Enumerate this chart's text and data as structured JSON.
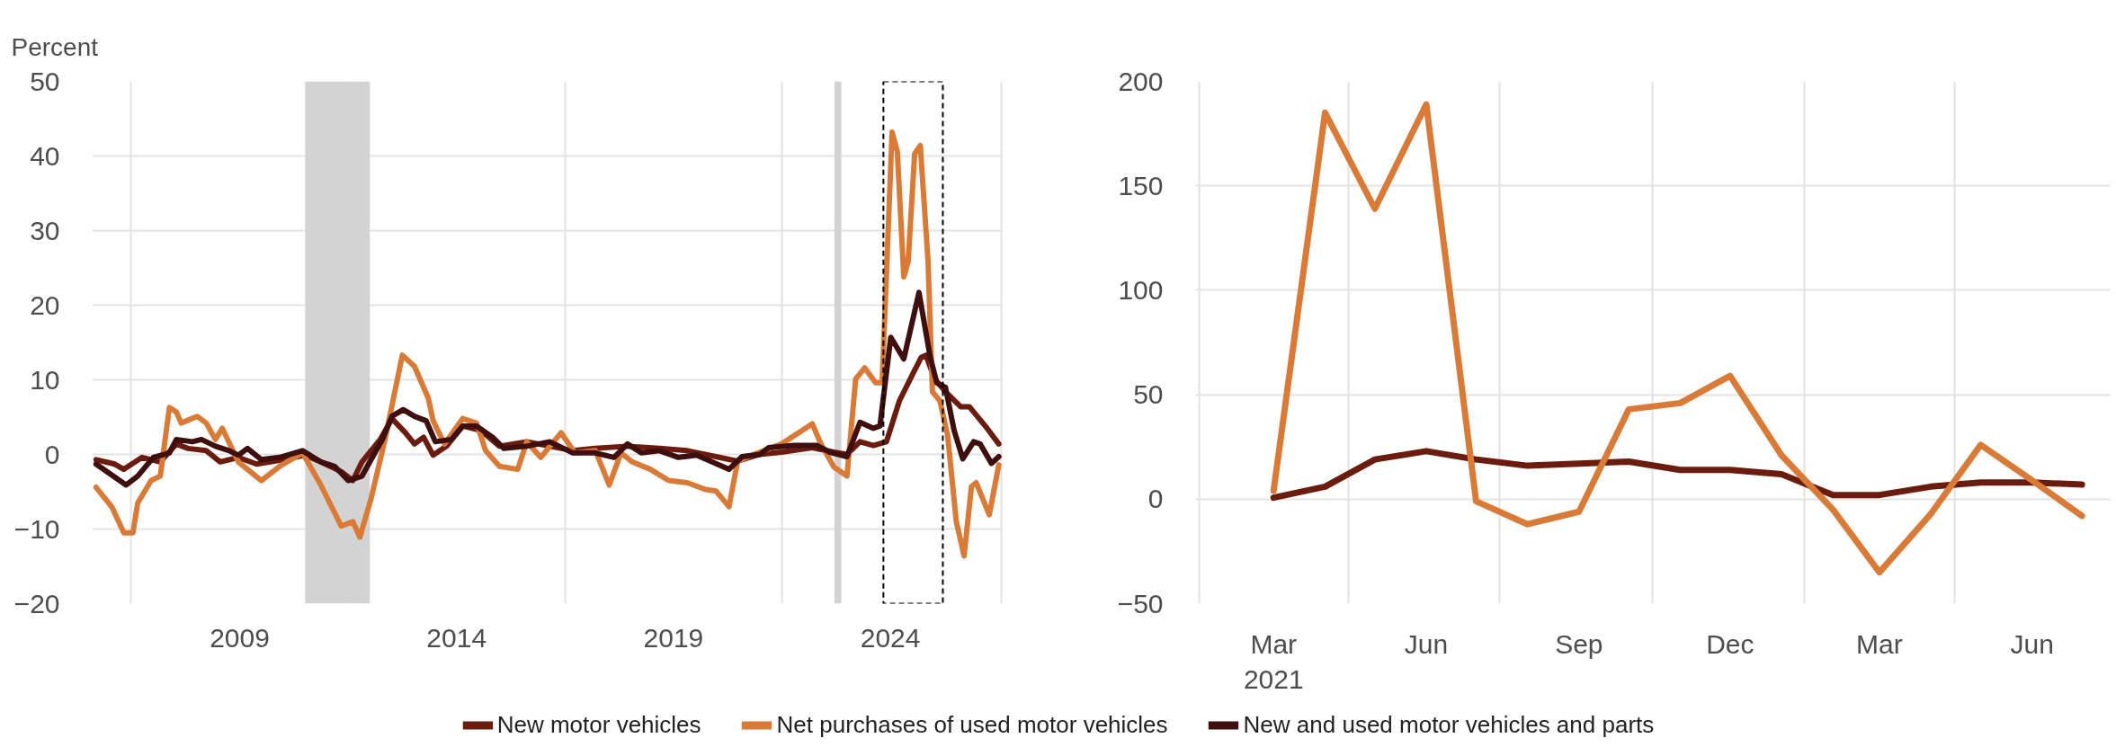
{
  "chart_data": [
    {
      "type": "line",
      "ylabel": "Percent",
      "xlim": [
        2005.6,
        2026.6
      ],
      "ylim": [
        -20,
        50
      ],
      "yticks": [
        {
          "value": -20,
          "label": "−20"
        },
        {
          "value": -10,
          "label": "−10"
        },
        0,
        10,
        20,
        30,
        40,
        50
      ],
      "xticks": [
        {
          "value": 2006.5,
          "label": null
        },
        {
          "value": 2009,
          "label": "2009"
        },
        {
          "value": 2011.5,
          "label": null
        },
        {
          "value": 2014,
          "label": "2014"
        },
        {
          "value": 2016.5,
          "label": null
        },
        {
          "value": 2019,
          "label": "2019"
        },
        {
          "value": 2021.5,
          "label": null
        },
        {
          "value": 2024,
          "label": "2024"
        },
        {
          "value": 2026.55,
          "label": null
        }
      ],
      "grid": true,
      "legend": "bottom",
      "bands": [
        {
          "axis": "x",
          "from": 2010.51,
          "to": 2012.0,
          "color": "#d3d3d3"
        },
        {
          "axis": "x",
          "from": 2022.71,
          "to": 2022.87,
          "color": "#d3d3d3"
        }
      ],
      "series": [
        {
          "name": "New motor vehicles",
          "color": "#6b1c0e",
          "x": [
            2005.69,
            2006.12,
            2006.33,
            2006.75,
            2007.17,
            2007.54,
            2007.81,
            2008.23,
            2008.55,
            2008.97,
            2009.39,
            2010.02,
            2010.5,
            2010.87,
            2011.34,
            2011.61,
            2011.82,
            2012.24,
            2012.51,
            2012.82,
            2013.03,
            2013.24,
            2013.46,
            2013.77,
            2014.14,
            2014.56,
            2014.99,
            2015.62,
            2016.15,
            2016.68,
            2017.2,
            2017.94,
            2018.68,
            2019.32,
            2019.98,
            2020.48,
            2020.99,
            2021.49,
            2022.2,
            2022.7,
            2023.0,
            2023.3,
            2023.61,
            2023.91,
            2024.21,
            2024.51,
            2024.71,
            2024.82,
            2025.02,
            2025.32,
            2025.62,
            2025.82,
            2026.23,
            2026.5
          ],
          "values": [
            -0.7,
            -1.3,
            -2.0,
            -0.4,
            -1.0,
            1.4,
            0.8,
            0.5,
            -1.0,
            -0.4,
            -1.3,
            -0.7,
            -0.1,
            -1.0,
            -2.3,
            -3.5,
            -1.0,
            2.0,
            4.8,
            2.9,
            1.4,
            2.3,
            -0.1,
            1.1,
            3.8,
            3.2,
            1.1,
            1.7,
            1.1,
            0.5,
            0.8,
            1.1,
            0.8,
            0.5,
            -0.3,
            -0.9,
            0,
            0.3,
            0.9,
            0.3,
            0,
            1.7,
            1.2,
            1.7,
            7.2,
            10.7,
            13.0,
            13.3,
            10.1,
            8.1,
            6.4,
            6.4,
            3.5,
            1.4
          ]
        },
        {
          "name": "Net purchases of used motor vehicles",
          "color": "#d97b37",
          "x": [
            2005.69,
            2006.06,
            2006.33,
            2006.54,
            2006.65,
            2006.96,
            2007.17,
            2007.38,
            2007.54,
            2007.65,
            2008.02,
            2008.23,
            2008.44,
            2008.6,
            2008.97,
            2009.5,
            2009.92,
            2010.45,
            2010.87,
            2011.34,
            2011.61,
            2011.77,
            2012.03,
            2012.35,
            2012.75,
            2013.03,
            2013.35,
            2013.46,
            2013.72,
            2014.14,
            2014.46,
            2014.67,
            2014.99,
            2015.41,
            2015.62,
            2015.94,
            2016.41,
            2016.73,
            2017.2,
            2017.52,
            2017.79,
            2018.05,
            2018.47,
            2018.89,
            2019.32,
            2019.74,
            2019.98,
            2020.28,
            2020.48,
            2020.99,
            2021.49,
            2022.2,
            2022.4,
            2022.7,
            2023.0,
            2023.2,
            2023.41,
            2023.66,
            2023.81,
            2024.04,
            2024.16,
            2024.31,
            2024.41,
            2024.56,
            2024.69,
            2024.87,
            2024.97,
            2025.14,
            2025.32,
            2025.52,
            2025.7,
            2025.87,
            2025.98,
            2026.28,
            2026.5
          ],
          "values": [
            -4.4,
            -7.1,
            -10.5,
            -10.5,
            -6.5,
            -3.5,
            -2.9,
            6.3,
            5.7,
            4.2,
            5.1,
            4.2,
            2.0,
            3.5,
            -1.0,
            -3.5,
            -1.6,
            0.2,
            -4.1,
            -9.6,
            -9.0,
            -11.1,
            -5.9,
            2.0,
            13.3,
            11.8,
            7.5,
            4.5,
            1.4,
            4.8,
            4.2,
            0.5,
            -1.6,
            -2.0,
            1.7,
            -0.4,
            2.9,
            0.2,
            0.5,
            -4.1,
            0.2,
            -1.0,
            -2.0,
            -3.5,
            -3.8,
            -4.7,
            -4.9,
            -7.0,
            -0.9,
            0.3,
            1.4,
            4.1,
            1.4,
            -1.7,
            -2.9,
            10.1,
            11.6,
            9.6,
            9.6,
            43.2,
            40.6,
            23.8,
            25.8,
            40.3,
            41.4,
            25.8,
            8.4,
            7.2,
            2.6,
            -9.0,
            -13.6,
            -4.3,
            -3.8,
            -8.1,
            -1.4
          ]
        },
        {
          "name": "New and used motor vehicles and parts",
          "color": "#3f0f0f",
          "x": [
            2005.69,
            2006.01,
            2006.38,
            2006.65,
            2007.01,
            2007.38,
            2007.54,
            2007.91,
            2008.12,
            2008.44,
            2008.76,
            2008.97,
            2009.18,
            2009.5,
            2009.92,
            2010.45,
            2010.87,
            2011.19,
            2011.5,
            2011.82,
            2012.03,
            2012.29,
            2012.51,
            2012.77,
            2013.03,
            2013.3,
            2013.51,
            2013.88,
            2014.14,
            2014.46,
            2014.83,
            2015.09,
            2015.62,
            2016.15,
            2016.68,
            2017.2,
            2017.63,
            2017.94,
            2018.26,
            2018.68,
            2019.11,
            2019.53,
            2020.28,
            2020.58,
            2020.99,
            2021.19,
            2021.79,
            2022.3,
            2022.6,
            2023.0,
            2023.3,
            2023.61,
            2023.76,
            2024.01,
            2024.31,
            2024.66,
            2024.92,
            2025.07,
            2025.27,
            2025.47,
            2025.67,
            2025.92,
            2026.07,
            2026.33,
            2026.5
          ],
          "values": [
            -1.3,
            -2.6,
            -4.1,
            -2.9,
            -0.4,
            0.2,
            2.0,
            1.7,
            2.0,
            1.1,
            0.5,
            -0.1,
            0.8,
            -0.7,
            -0.4,
            0.5,
            -1.0,
            -1.6,
            -3.5,
            -2.9,
            -0.7,
            2.0,
            5.1,
            6.0,
            5.1,
            4.5,
            1.7,
            2.0,
            3.8,
            3.8,
            2.3,
            0.8,
            1.1,
            1.7,
            0.2,
            0.2,
            -0.4,
            1.4,
            0.2,
            0.5,
            -0.4,
            -0.1,
            -2.0,
            -0.3,
            0,
            0.9,
            1.2,
            1.2,
            0.3,
            -0.3,
            4.3,
            3.5,
            3.8,
            15.7,
            12.8,
            21.7,
            13.0,
            9.6,
            9.0,
            3.2,
            -0.6,
            1.7,
            1.4,
            -1.2,
            -0.3
          ]
        }
      ]
    },
    {
      "type": "line",
      "x": [
        "2021-03",
        "2021-04",
        "2021-05",
        "2021-06",
        "2021-07",
        "2021-08",
        "2021-09",
        "2021-10",
        "2021-11",
        "2021-12",
        "2022-01",
        "2022-02",
        "2022-03",
        "2022-04",
        "2022-05",
        "2022-06",
        "2022-07"
      ],
      "xlim": [
        "2021-01-13",
        "2022-07-18"
      ],
      "ylim": [
        -50,
        200
      ],
      "yticks": [
        {
          "value": -50,
          "label": "−50"
        },
        0,
        50,
        100,
        150,
        200
      ],
      "xticks": [
        {
          "value": "2021-01-15",
          "label": null
        },
        {
          "value": "2021-03",
          "label": "Mar\n2021"
        },
        {
          "value": "2021-04-15",
          "label": null
        },
        {
          "value": "2021-06",
          "label": "Jun"
        },
        {
          "value": "2021-07-15",
          "label": null
        },
        {
          "value": "2021-09",
          "label": "Sep"
        },
        {
          "value": "2021-10-15",
          "label": null
        },
        {
          "value": "2021-12",
          "label": "Dec"
        },
        {
          "value": "2022-01-15",
          "label": null
        },
        {
          "value": "2022-03",
          "label": "Mar"
        },
        {
          "value": "2022-04-15",
          "label": null
        },
        {
          "value": "2022-06",
          "label": "Jun"
        }
      ],
      "grid": true,
      "series": [
        {
          "color": "#6b1c0e",
          "values": [
            0.7,
            6,
            19,
            23,
            19,
            16,
            17,
            18,
            14,
            14,
            12,
            2,
            2,
            6,
            8,
            8,
            7
          ]
        },
        {
          "color": "#d97b37",
          "values": [
            4,
            185,
            139,
            189,
            -1,
            -12,
            -6,
            43,
            46,
            59,
            21,
            -5,
            -35,
            -7,
            26,
            9,
            -8
          ]
        }
      ]
    }
  ]
}
